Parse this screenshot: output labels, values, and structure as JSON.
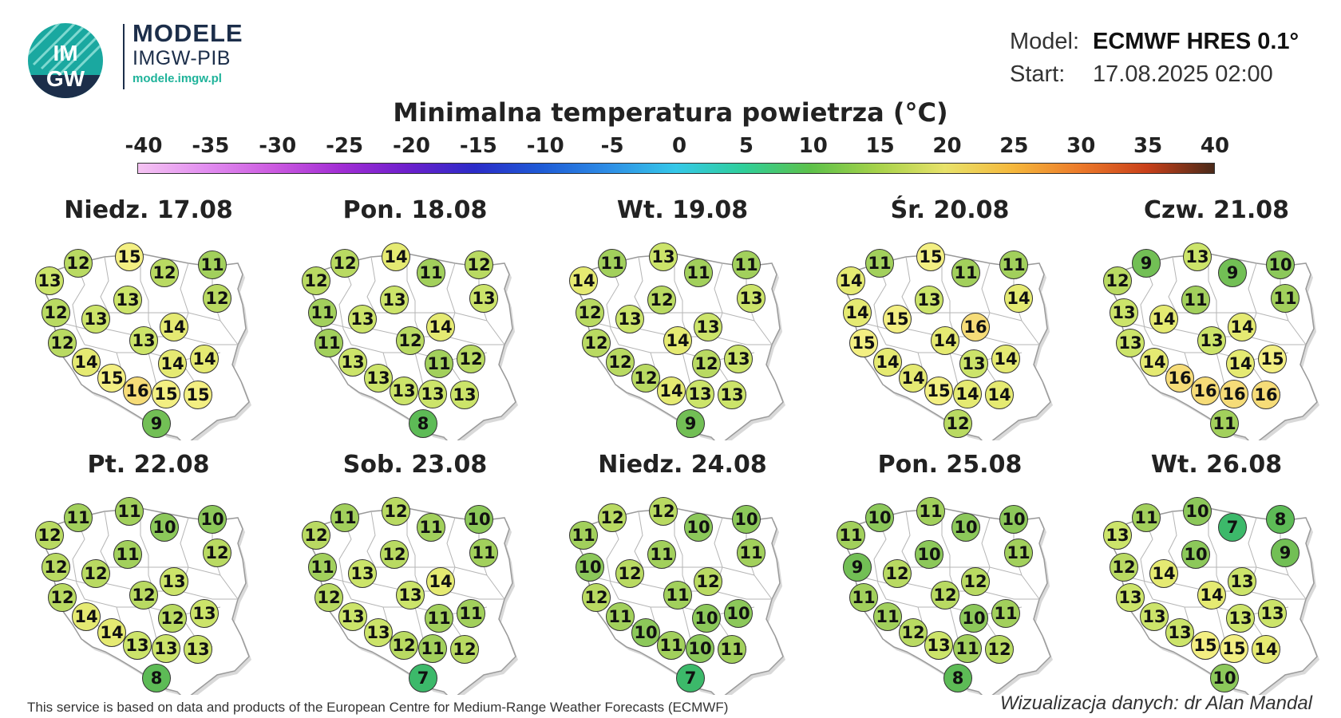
{
  "brand": {
    "line1": "MODELE",
    "line2": "IMGW-PIB",
    "url": "modele.imgw.pl",
    "logo_top": "IM",
    "logo_bottom": "GW"
  },
  "meta": {
    "model_label": "Model:",
    "model_value": "ECMWF HRES 0.1°",
    "start_label": "Start:",
    "start_value": "17.08.2025 02:00"
  },
  "title": "Minimalna temperatura powietrza (°C)",
  "colorbar": {
    "ticks": [
      "-40",
      "-35",
      "-30",
      "-25",
      "-20",
      "-15",
      "-10",
      "-5",
      "0",
      "5",
      "10",
      "15",
      "20",
      "25",
      "30",
      "35",
      "40"
    ]
  },
  "colors": {
    "c7": "#3cb96a",
    "c8": "#5dbb56",
    "c9": "#72bf55",
    "c10": "#8cc85a",
    "c11": "#a2d05c",
    "c12": "#b9da62",
    "c13": "#cce46a",
    "c14": "#e5ea72",
    "c15": "#f3ef82",
    "c16": "#f6dc78"
  },
  "panels": [
    {
      "date": "Niedz. 17.08",
      "values": [
        13,
        12,
        15,
        12,
        11,
        12,
        12,
        13,
        13,
        14,
        12,
        13,
        14,
        14,
        14,
        15,
        16,
        15,
        15,
        9
      ]
    },
    {
      "date": "Pon. 18.08",
      "values": [
        12,
        12,
        14,
        11,
        12,
        13,
        11,
        13,
        13,
        14,
        11,
        12,
        13,
        11,
        12,
        13,
        13,
        13,
        13,
        8
      ]
    },
    {
      "date": "Wt. 19.08",
      "values": [
        14,
        11,
        13,
        11,
        11,
        13,
        12,
        13,
        12,
        13,
        12,
        14,
        12,
        12,
        13,
        12,
        14,
        13,
        13,
        9
      ]
    },
    {
      "date": "Śr. 20.08",
      "values": [
        14,
        11,
        15,
        11,
        11,
        14,
        14,
        15,
        13,
        16,
        15,
        14,
        14,
        13,
        14,
        14,
        15,
        14,
        14,
        12
      ]
    },
    {
      "date": "Czw. 21.08",
      "values": [
        12,
        9,
        13,
        9,
        10,
        11,
        13,
        14,
        11,
        14,
        13,
        13,
        14,
        14,
        15,
        16,
        16,
        16,
        16,
        11
      ]
    },
    {
      "date": "Pt. 22.08",
      "values": [
        12,
        11,
        11,
        10,
        10,
        12,
        12,
        12,
        11,
        13,
        12,
        12,
        14,
        12,
        13,
        14,
        13,
        13,
        13,
        8
      ]
    },
    {
      "date": "Sob. 23.08",
      "values": [
        12,
        11,
        12,
        11,
        10,
        11,
        11,
        13,
        12,
        14,
        12,
        13,
        13,
        11,
        11,
        13,
        12,
        11,
        12,
        7
      ]
    },
    {
      "date": "Niedz. 24.08",
      "values": [
        11,
        12,
        12,
        10,
        10,
        11,
        10,
        12,
        11,
        12,
        12,
        11,
        11,
        10,
        10,
        10,
        11,
        10,
        11,
        7
      ]
    },
    {
      "date": "Pon. 25.08",
      "values": [
        11,
        10,
        11,
        10,
        10,
        11,
        9,
        12,
        10,
        12,
        11,
        12,
        11,
        10,
        11,
        12,
        13,
        11,
        12,
        8
      ]
    },
    {
      "date": "Wt. 26.08",
      "values": [
        13,
        11,
        10,
        7,
        8,
        9,
        12,
        14,
        10,
        13,
        13,
        14,
        13,
        13,
        13,
        13,
        15,
        15,
        14,
        10
      ]
    }
  ],
  "footer": {
    "left": "This service is based on data and products of the European Centre for Medium-Range Weather Forecasts (ECMWF)",
    "right": "Wizualizacja danych: dr Alan Mandal"
  }
}
